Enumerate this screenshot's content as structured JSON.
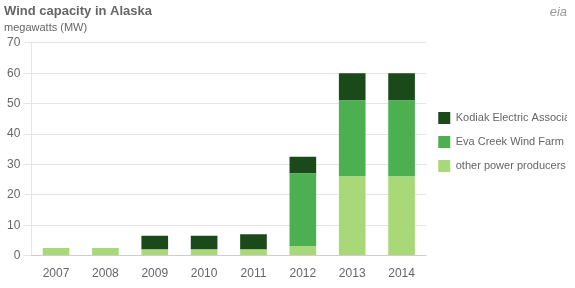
{
  "chart_data": {
    "type": "bar",
    "title": "Wind capacity in Alaska",
    "subtitle": "megawatts (MW)",
    "categories": [
      "2007",
      "2008",
      "2009",
      "2010",
      "2011",
      "2012",
      "2013",
      "2014"
    ],
    "series": [
      {
        "name": "other power producers",
        "color": "#a8d878",
        "values": [
          2.5,
          2.5,
          2.0,
          2.0,
          2.0,
          3.0,
          26.0,
          26.0
        ]
      },
      {
        "name": "Eva Creek Wind Farm",
        "color": "#4caf50",
        "values": [
          0.0,
          0.0,
          0.0,
          0.0,
          0.0,
          24.0,
          25.0,
          25.0
        ]
      },
      {
        "name": "Kodiak Electric Association",
        "color": "#1a4a1a",
        "values": [
          0.0,
          0.0,
          4.5,
          4.5,
          5.0,
          5.5,
          9.0,
          9.0
        ]
      }
    ],
    "stacked": true,
    "ylim": [
      0,
      70
    ],
    "yticks": [
      0,
      10,
      20,
      30,
      40,
      50,
      60,
      70
    ],
    "grid": true,
    "legend": "right",
    "annotations": [
      "eia"
    ]
  }
}
